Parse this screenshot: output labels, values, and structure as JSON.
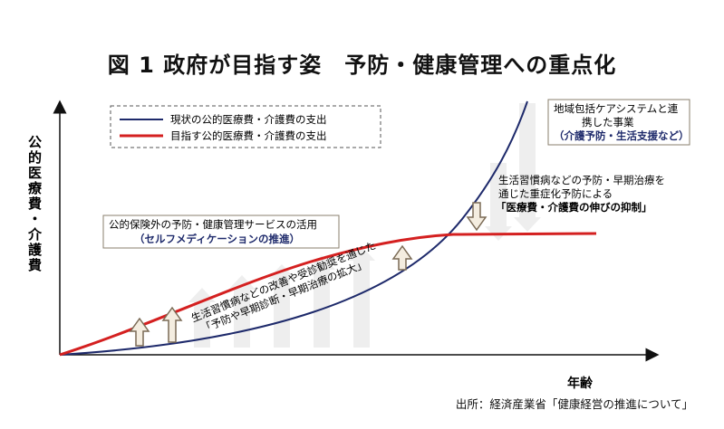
{
  "title": "図 1 政府が目指す姿　予防・健康管理への重点化",
  "y_axis_label_chars": [
    "公",
    "的",
    "医",
    "療",
    "費",
    "・",
    "介",
    "護",
    "費"
  ],
  "x_axis_label": "年齢",
  "legend": {
    "current": "現状の公的医療費・介護費の支出",
    "target": "目指す公的医療費・介護費の支出"
  },
  "callouts": {
    "left_line1": "公的保険外の予防・健康管理サービスの活用",
    "left_line2": "（セルフメディケーションの推進）",
    "right_line1": "地域包括ケアシステムと連",
    "right_line2": "携した事業",
    "right_line3": "（介護予防・生活支援など）"
  },
  "annotations": {
    "middle_line1": "生活習慣病などの予防・早期治療を",
    "middle_line2": "通じた重症化予防による",
    "middle_line3": "「医療費・介護費の伸びの抑制」",
    "diag_line1": "生活習慣病などの改善や受診勧奨を通じた",
    "diag_line2": "「予防や早期診断・早期治療の拡大」"
  },
  "source": "出所：経済産業省「健康経営の推進について」",
  "colors": {
    "current_line": "#1e2a6b",
    "target_line": "#d42020",
    "arrow_fill": "#f4ede0",
    "arrow_stroke": "#7a6a55",
    "arrow_shaft": "#eeeeee"
  }
}
